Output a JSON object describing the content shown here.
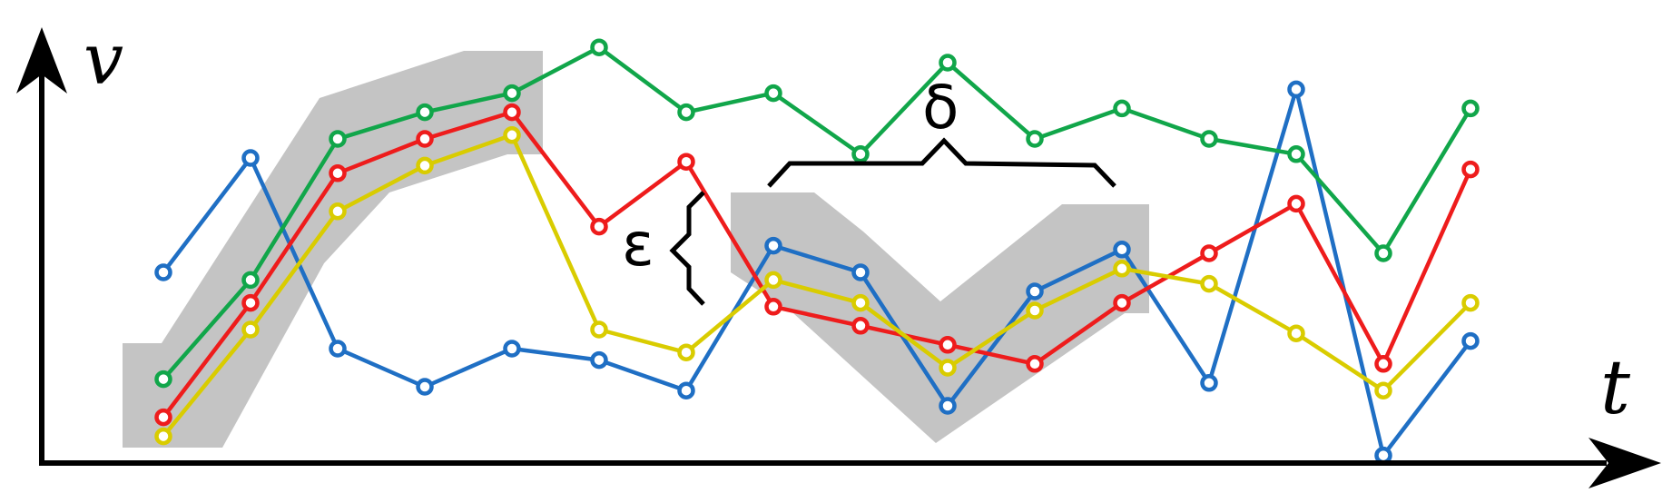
{
  "axes": {
    "y_label": "v",
    "x_label": "t"
  },
  "annotations": {
    "epsilon": "ε",
    "delta": "δ"
  },
  "colors": {
    "blue": "#1f6fc4",
    "green": "#11a64a",
    "red": "#ee1c1c",
    "yellow": "#d9cc00",
    "window": "#c4c4c4",
    "axis": "#000000"
  },
  "chart_data": {
    "type": "line",
    "xlabel": "t",
    "ylabel": "v",
    "x": [
      1,
      2,
      3,
      4,
      5,
      6,
      7,
      8,
      9,
      10,
      11,
      12,
      13,
      14,
      15,
      16
    ],
    "ylim": [
      0,
      10
    ],
    "series": [
      {
        "color": "blue",
        "values": [
          5.0,
          8.0,
          3.0,
          2.0,
          3.0,
          2.7,
          1.9,
          5.7,
          5.0,
          1.5,
          4.5,
          5.6,
          2.1,
          9.8,
          0.2,
          3.2
        ]
      },
      {
        "color": "green",
        "values": [
          2.2,
          4.8,
          8.5,
          9.2,
          9.7,
          10.9,
          9.2,
          9.7,
          8.1,
          10.5,
          8.5,
          9.3,
          8.5,
          8.1,
          5.5,
          9.3
        ]
      },
      {
        "color": "red",
        "values": [
          1.2,
          4.2,
          7.6,
          8.5,
          9.2,
          6.2,
          7.9,
          4.1,
          3.6,
          3.1,
          2.6,
          4.2,
          5.5,
          6.8,
          2.6,
          7.7
        ]
      },
      {
        "color": "yellow",
        "values": [
          0.7,
          3.5,
          6.6,
          7.8,
          8.6,
          3.5,
          2.9,
          4.8,
          4.2,
          2.5,
          4.0,
          5.1,
          4.7,
          3.4,
          1.9,
          4.2
        ]
      }
    ]
  }
}
